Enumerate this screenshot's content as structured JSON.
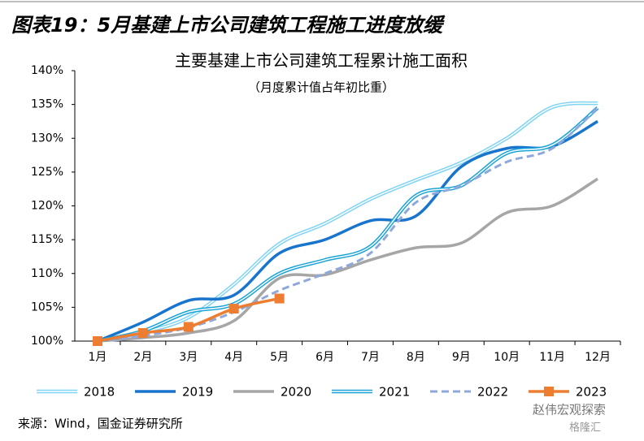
{
  "header": {
    "title": "图表19：5月基建上市公司建筑工程施工进度放缓"
  },
  "chart_data": {
    "type": "line",
    "title": "主要基建上市公司建筑工程累计施工面积",
    "subtitle": "（月度累计值占年初比重）",
    "categories": [
      "1月",
      "2月",
      "3月",
      "4月",
      "5月",
      "6月",
      "7月",
      "8月",
      "9月",
      "10月",
      "11月",
      "12月"
    ],
    "ylim": [
      100,
      140
    ],
    "yticks": [
      {
        "value": 100,
        "label": "100%"
      },
      {
        "value": 105,
        "label": "105%"
      },
      {
        "value": 110,
        "label": "110%"
      },
      {
        "value": 115,
        "label": "115%"
      },
      {
        "value": 120,
        "label": "120%"
      },
      {
        "value": 125,
        "label": "125%"
      },
      {
        "value": 130,
        "label": "130%"
      },
      {
        "value": 135,
        "label": "135%"
      },
      {
        "value": 140,
        "label": "140%"
      }
    ],
    "grid": false,
    "legend": "bottom",
    "series": [
      {
        "name": "2018",
        "color": "#7fd3f5",
        "line_style": "double",
        "values": [
          100,
          101.3,
          103.5,
          108.4,
          114.4,
          117.4,
          121,
          123.8,
          126.4,
          130,
          134.6,
          135.2
        ]
      },
      {
        "name": "2019",
        "color": "#1874cd",
        "line_style": "solid",
        "values": [
          100,
          102.8,
          106,
          106.8,
          113,
          115,
          117.8,
          118.5,
          125.8,
          128.5,
          128.8,
          132.5
        ]
      },
      {
        "name": "2020",
        "color": "#a6a6a6",
        "line_style": "solid",
        "values": [
          100,
          100.5,
          101.2,
          103,
          109.3,
          109.8,
          112,
          113.8,
          114.5,
          119,
          120,
          124
        ]
      },
      {
        "name": "2021",
        "color": "#1aa3d6",
        "line_style": "double",
        "values": [
          100,
          101.5,
          104.3,
          105.5,
          110,
          112,
          114,
          121.5,
          123,
          127.8,
          129,
          134.5
        ]
      },
      {
        "name": "2022",
        "color": "#8fa8dc",
        "line_style": "dashed",
        "values": [
          100,
          100.8,
          102,
          104.3,
          107.5,
          110,
          113,
          120.5,
          123,
          126.5,
          128.5,
          134.5
        ]
      },
      {
        "name": "2023",
        "color": "#ed7d31",
        "line_style": "marker",
        "values": [
          100,
          101.2,
          102.1,
          104.8,
          106.3,
          null,
          null,
          null,
          null,
          null,
          null,
          null
        ]
      }
    ]
  },
  "footer": {
    "source": "来源：Wind，国金证券研究所",
    "watermark": [
      "赵伟宏观探索",
      "格隆汇"
    ]
  }
}
